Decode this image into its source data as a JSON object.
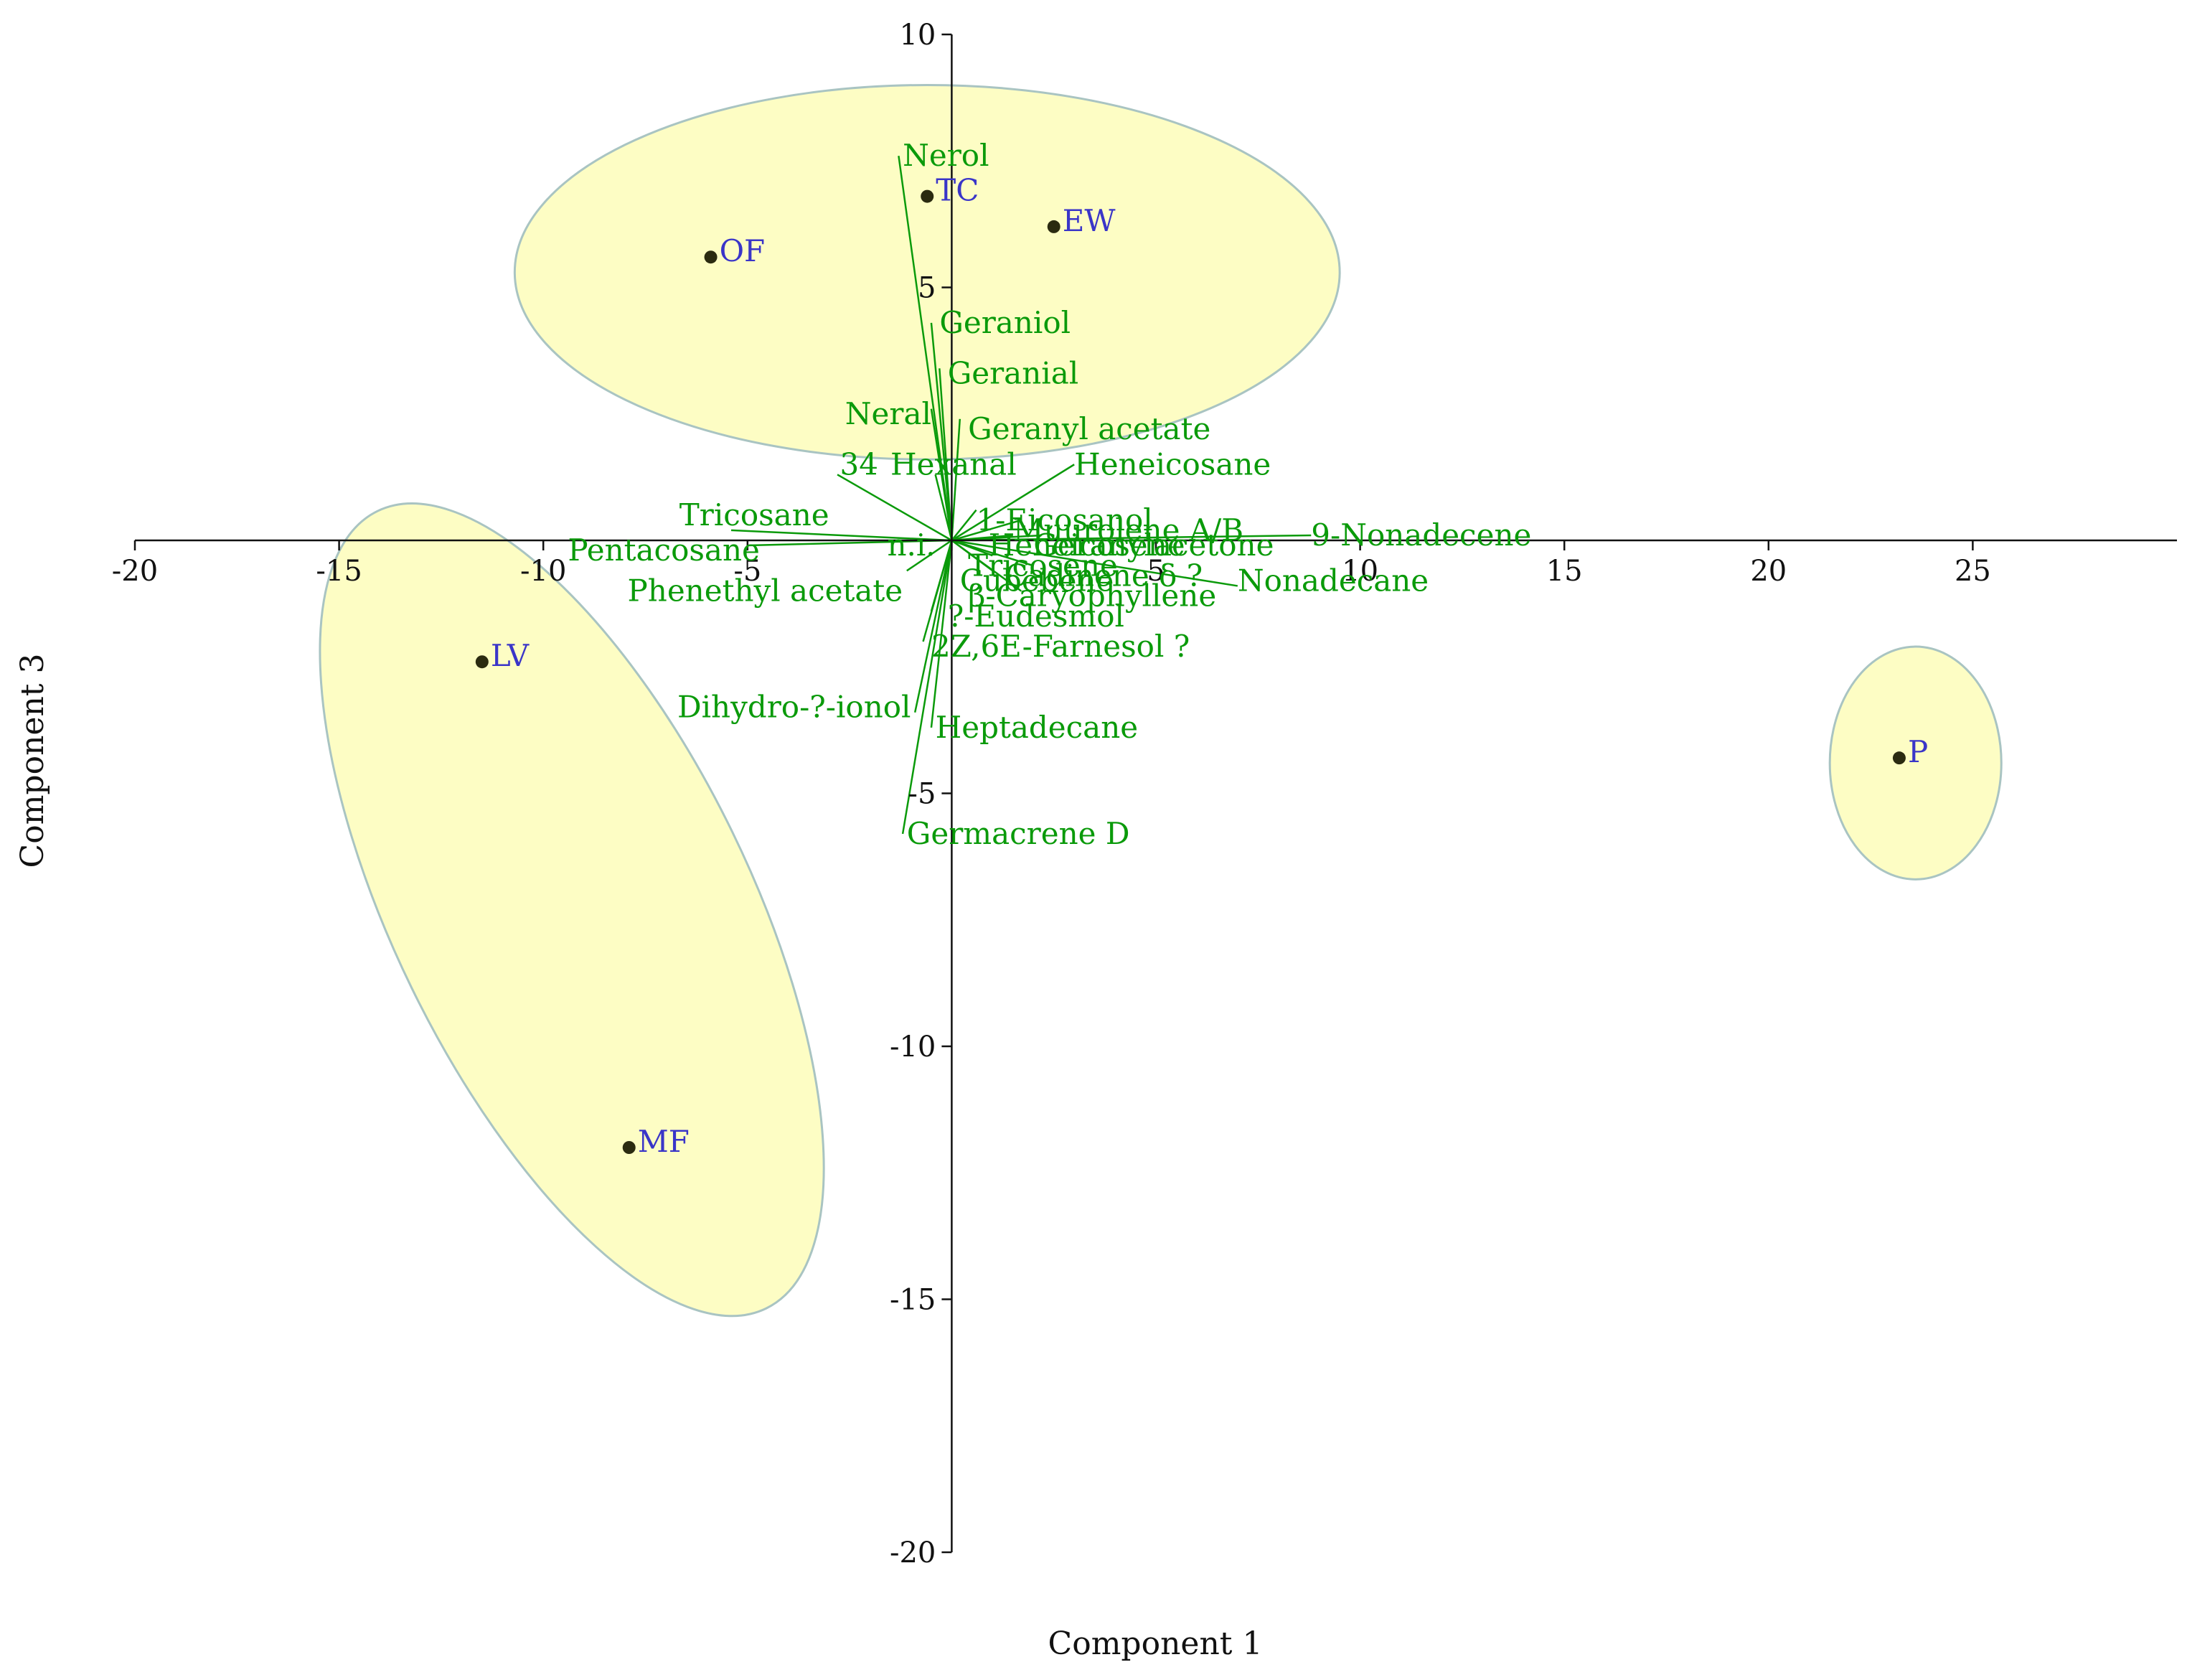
{
  "chart_data": {
    "type": "scatter",
    "subtype": "pca-biplot",
    "title": "",
    "xlabel": "Component 1",
    "ylabel": "Component 3",
    "xlim": [
      -20,
      30
    ],
    "ylim": [
      -20,
      10
    ],
    "xticks": [
      -20,
      -15,
      -10,
      -5,
      0,
      5,
      10,
      15,
      20,
      25
    ],
    "yticks": [
      10,
      5,
      -5,
      -10,
      -15,
      -20
    ],
    "xtick_labels": [
      "-20",
      "-15",
      "-10",
      "-5",
      "",
      "5",
      "10",
      "15",
      "20",
      "25"
    ],
    "ytick_labels": [
      "10",
      "5",
      "-5",
      "-10",
      "-15",
      "-20"
    ],
    "grid": false,
    "colors": {
      "axis": "#111111",
      "vectors": "#0a9a0a",
      "observations": "#3a35c8",
      "points": "#2b2b10",
      "ellipse_fill": "#fdfdc4",
      "ellipse_stroke": "#a9c4c2"
    },
    "observations": [
      {
        "label": "TC",
        "x": -0.6,
        "y": 6.8
      },
      {
        "label": "EW",
        "x": 2.5,
        "y": 6.2
      },
      {
        "label": "OF",
        "x": -5.9,
        "y": 5.6
      },
      {
        "label": "LV",
        "x": -11.5,
        "y": -2.4
      },
      {
        "label": "MF",
        "x": -7.9,
        "y": -12.0
      },
      {
        "label": "P",
        "x": 23.2,
        "y": -4.3
      }
    ],
    "groups": [
      {
        "cx": -0.6,
        "cy": 5.3,
        "rx": 10.1,
        "ry": 3.7,
        "angle": 0
      },
      {
        "cx": -9.3,
        "cy": -7.3,
        "rx": 9.7,
        "ry": 3.9,
        "angle": 64
      },
      {
        "cx": 23.6,
        "cy": -4.4,
        "rx": 2.1,
        "ry": 2.3,
        "angle": 0
      }
    ],
    "loadings": [
      {
        "label": "Nerol",
        "x": -1.3,
        "y": 7.6,
        "lx": -1.2,
        "ly": 7.6,
        "anchor": "start"
      },
      {
        "label": "Geraniol",
        "x": -0.5,
        "y": 4.3,
        "lx": -0.3,
        "ly": 4.3,
        "anchor": "start"
      },
      {
        "label": "Geranial",
        "x": -0.3,
        "y": 3.4,
        "lx": -0.1,
        "ly": 3.3,
        "anchor": "start"
      },
      {
        "label": "Neral",
        "x": -0.5,
        "y": 2.6,
        "lx": -0.5,
        "ly": 2.5,
        "anchor": "end"
      },
      {
        "label": "Geranyl acetate",
        "x": 0.2,
        "y": 2.4,
        "lx": 0.4,
        "ly": 2.2,
        "anchor": "start"
      },
      {
        "label": "Heneicosane",
        "x": 3.0,
        "y": 1.5,
        "lx": 3.0,
        "ly": 1.5,
        "anchor": "start"
      },
      {
        "label": "34",
        "x": -2.8,
        "y": 1.3,
        "lx": -1.8,
        "ly": 1.5,
        "anchor": "end"
      },
      {
        "label": "Hexanal",
        "x": -0.4,
        "y": 1.3,
        "lx": -1.5,
        "ly": 1.5,
        "anchor": "start"
      },
      {
        "label": "Tricosane",
        "x": -5.4,
        "y": 0.2,
        "lx": -3.0,
        "ly": 0.5,
        "anchor": "end"
      },
      {
        "label": "Pentacosane",
        "x": -5.0,
        "y": -0.1,
        "lx": -4.7,
        "ly": -0.2,
        "anchor": "end"
      },
      {
        "label": "Phenethyl acetate",
        "x": -1.1,
        "y": -0.6,
        "lx": -1.2,
        "ly": -1.0,
        "anchor": "end"
      },
      {
        "label": "n.i.",
        "x": -0.6,
        "y": 0.0,
        "lx": -0.4,
        "ly": -0.1,
        "anchor": "end"
      },
      {
        "label": "1-Eicosanol",
        "x": 0.6,
        "y": 0.6,
        "lx": 0.6,
        "ly": 0.4,
        "anchor": "start"
      },
      {
        "label": "Muurolene A/B",
        "x": 1.7,
        "y": 0.4,
        "lx": 1.5,
        "ly": 0.2,
        "anchor": "start"
      },
      {
        "label": "Heneicosene",
        "x": 1.5,
        "y": 0.1,
        "lx": 0.9,
        "ly": -0.1,
        "anchor": "start"
      },
      {
        "label": "Geranylacetone",
        "x": 2.2,
        "y": 0.1,
        "lx": 2.0,
        "ly": -0.1,
        "anchor": "start"
      },
      {
        "label": "9-Nonadecene",
        "x": 8.8,
        "y": 0.1,
        "lx": 8.8,
        "ly": 0.1,
        "anchor": "start"
      },
      {
        "label": "Tricosene",
        "x": 1.0,
        "y": -0.3,
        "lx": 0.4,
        "ly": -0.5,
        "anchor": "start"
      },
      {
        "label": "Cubebene",
        "x": 1.0,
        "y": -0.6,
        "lx": 0.2,
        "ly": -0.8,
        "anchor": "start"
      },
      {
        "label": "Cadinene δ ?",
        "x": 2.0,
        "y": -0.5,
        "lx": 1.3,
        "ly": -0.7,
        "anchor": "start"
      },
      {
        "label": "Nonadecane",
        "x": 7.0,
        "y": -0.9,
        "lx": 7.0,
        "ly": -0.8,
        "anchor": "start"
      },
      {
        "label": "β-Caryophyllene",
        "x": 1.7,
        "y": -1.0,
        "lx": 0.4,
        "ly": -1.1,
        "anchor": "start"
      },
      {
        "label": "?-Eudesmol",
        "x": -0.5,
        "y": -1.4,
        "lx": -0.1,
        "ly": -1.5,
        "anchor": "start"
      },
      {
        "label": "2Z,6E-Farnesol ?",
        "x": -0.7,
        "y": -2.0,
        "lx": -0.5,
        "ly": -2.1,
        "anchor": "start"
      },
      {
        "label": "Dihydro-?-ionol",
        "x": -0.9,
        "y": -3.4,
        "lx": -1.0,
        "ly": -3.3,
        "anchor": "end"
      },
      {
        "label": "Heptadecane",
        "x": -0.5,
        "y": -3.7,
        "lx": -0.4,
        "ly": -3.7,
        "anchor": "start"
      },
      {
        "label": "Germacrene D",
        "x": -1.2,
        "y": -5.8,
        "lx": -1.1,
        "ly": -5.8,
        "anchor": "start"
      }
    ]
  }
}
